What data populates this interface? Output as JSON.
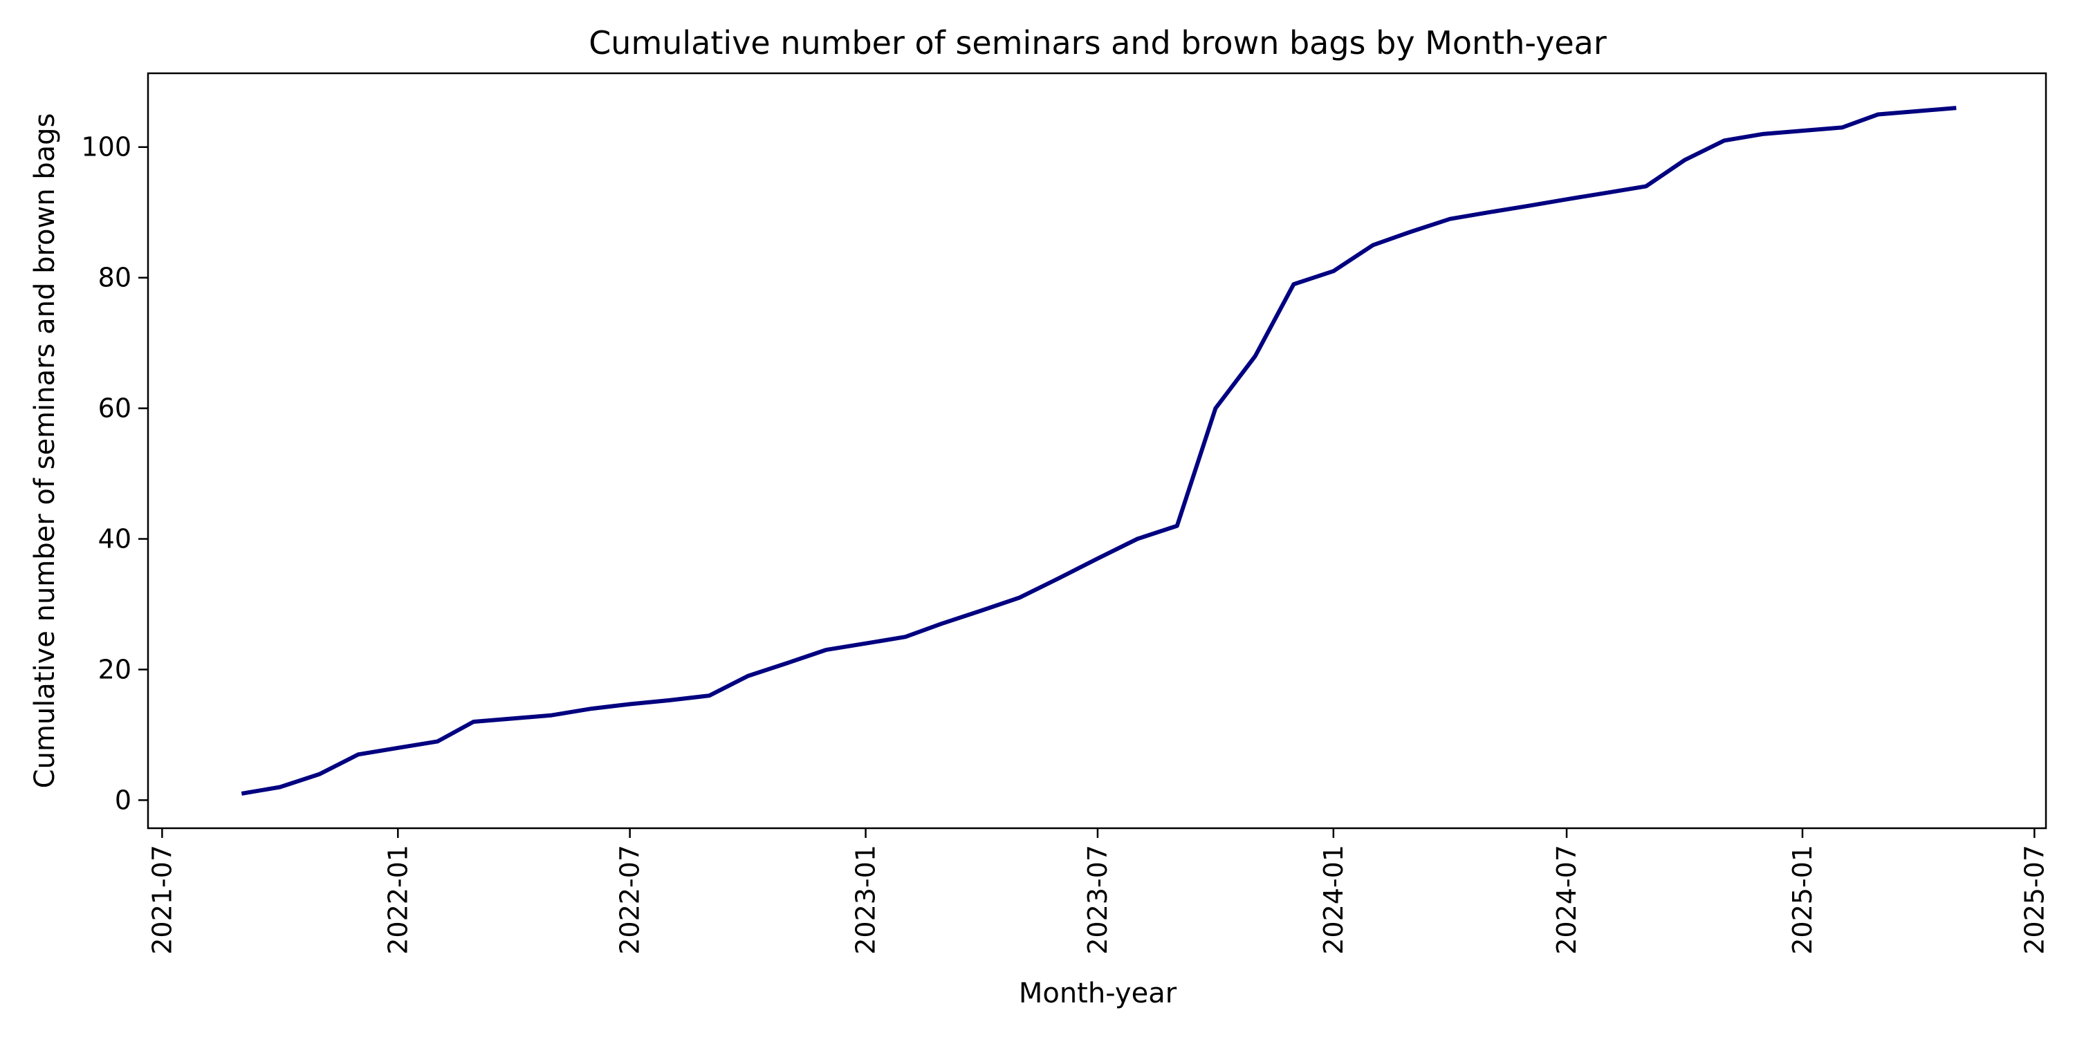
{
  "chart_data": {
    "type": "line",
    "title": "Cumulative number of seminars and brown bags by Month-year",
    "xlabel": "Month-year",
    "ylabel": "Cumulative number of seminars and brown bags",
    "xlim": [
      "2021-06-20",
      "2025-07-10"
    ],
    "ylim": [
      -4.3,
      111.3
    ],
    "x_ticks": [
      "2021-07",
      "2022-01",
      "2022-07",
      "2023-01",
      "2023-07",
      "2024-01",
      "2024-07",
      "2025-01",
      "2025-07"
    ],
    "x_tick_rotation_deg": 90,
    "y_ticks": [
      0,
      20,
      40,
      60,
      80,
      100
    ],
    "grid": false,
    "legend": "none",
    "line_color": "#000080",
    "series": [
      {
        "x": [
          "2021-09-01",
          "2021-10-01",
          "2021-11-01",
          "2021-12-01",
          "2022-01-01",
          "2022-02-01",
          "2022-03-01",
          "2022-04-01",
          "2022-05-01",
          "2022-06-01",
          "2022-07-01",
          "2022-08-01",
          "2022-09-01",
          "2022-10-01",
          "2022-11-01",
          "2022-12-01",
          "2023-01-01",
          "2023-02-01",
          "2023-03-01",
          "2023-04-01",
          "2023-05-01",
          "2023-06-01",
          "2023-07-01",
          "2023-08-01",
          "2023-09-01",
          "2023-10-01",
          "2023-11-01",
          "2023-12-01",
          "2024-01-01",
          "2024-02-01",
          "2024-03-01",
          "2024-04-01",
          "2024-05-01",
          "2024-06-01",
          "2024-07-01",
          "2024-08-01",
          "2024-09-01",
          "2024-10-01",
          "2024-11-01",
          "2024-12-01",
          "2025-01-01",
          "2025-02-01",
          "2025-03-01",
          "2025-04-01",
          "2025-05-01"
        ],
        "values": [
          1,
          2,
          4,
          7,
          8,
          9,
          12,
          12.5,
          13,
          14,
          14.7,
          15.3,
          16,
          19,
          21,
          23,
          24,
          25,
          27,
          29,
          31,
          34,
          37,
          40,
          42,
          60,
          68,
          79,
          81,
          85,
          87,
          89,
          90,
          91,
          92,
          93,
          94,
          98,
          101,
          102,
          102.5,
          103,
          105,
          105.5,
          106
        ]
      }
    ]
  }
}
